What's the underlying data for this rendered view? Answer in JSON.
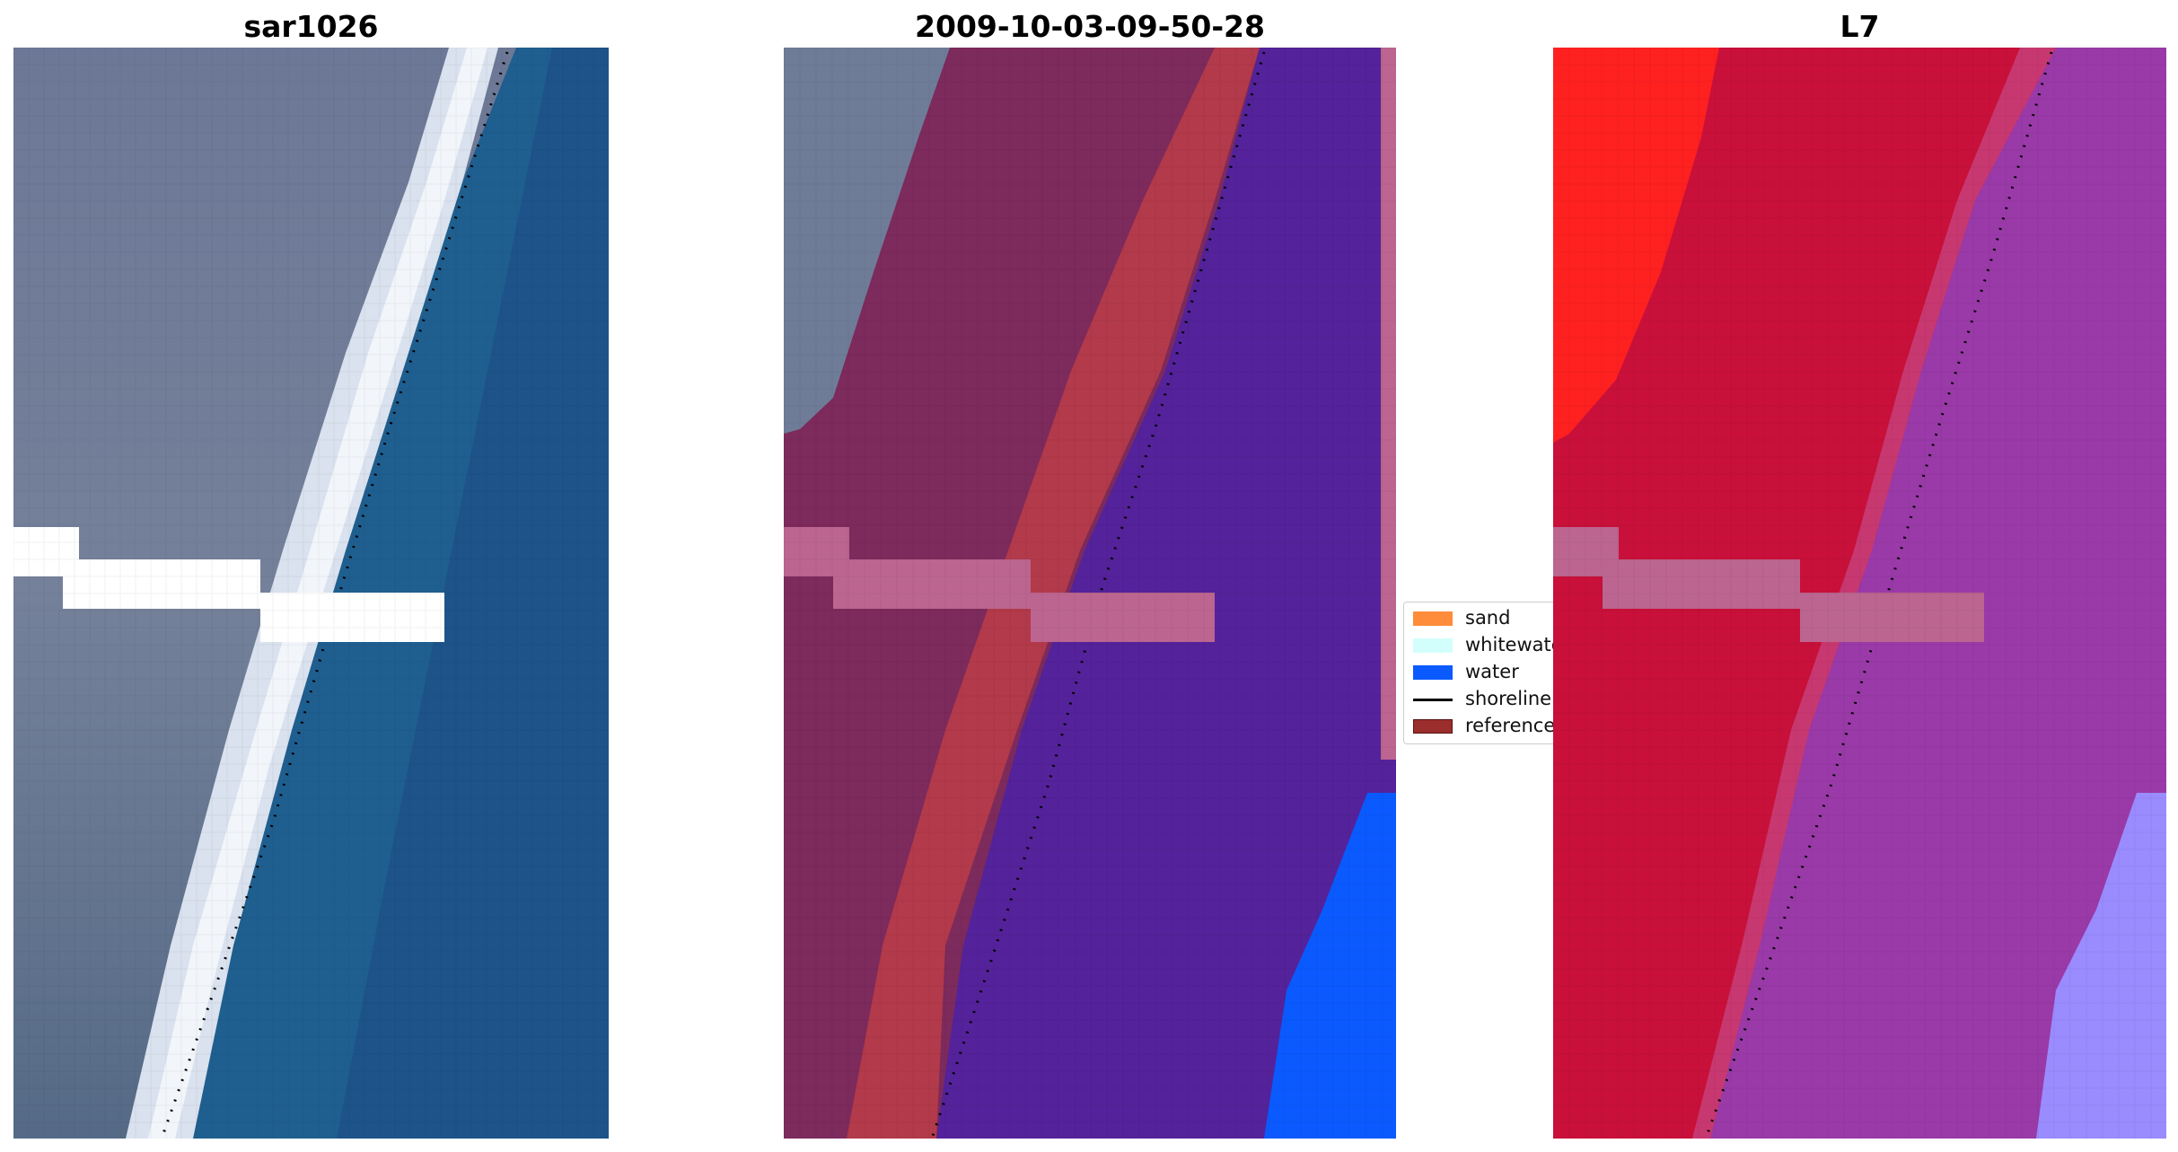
{
  "panels": [
    {
      "title": "sar1026"
    },
    {
      "title": "2009-10-03-09-50-28"
    },
    {
      "title": "L7"
    }
  ],
  "legend": {
    "items": [
      {
        "label": "sand",
        "color": "#ff8c3a",
        "kind": "patch"
      },
      {
        "label": "whitewater",
        "color": "#d2fffc",
        "kind": "patch"
      },
      {
        "label": "water",
        "color": "#0a5aff",
        "kind": "patch"
      },
      {
        "label": "shoreline",
        "color": "#000000",
        "kind": "line"
      },
      {
        "label": "reference",
        "color": "#9b2d2d",
        "kind": "patch"
      }
    ]
  },
  "colors": {
    "background": "#ffffff",
    "sar_land": "#6f7c94",
    "sar_water": "#1f5f90",
    "sar_surf": "#eaeef5",
    "class_land": "#7d2a5c",
    "class_sand": "#b23a4a",
    "class_water": "#54229a",
    "class_water_bright": "#0a5aff",
    "class_nodata": "#bc6590",
    "l7_red": "#c8103a",
    "l7_bright_red": "#ff2020",
    "l7_purple": "#9a3aa8",
    "l7_lavender": "#9a8cff",
    "nodata_white": "#ffffff"
  }
}
